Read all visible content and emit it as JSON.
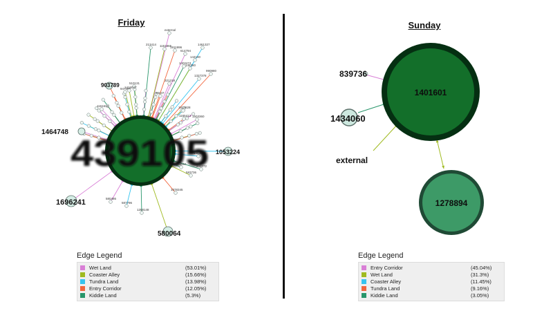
{
  "panels": [
    {
      "id": "friday",
      "title": "Friday",
      "legend_title": "Edge Legend",
      "legend": [
        {
          "label": "Wet Land",
          "pct": "(53.01%)",
          "color": "#d97fd6"
        },
        {
          "label": "Coaster Alley",
          "pct": "(15.66%)",
          "color": "#9fba1f"
        },
        {
          "label": "Tundra Land",
          "pct": "(13.98%)",
          "color": "#35c4f0"
        },
        {
          "label": "Entry Corridor",
          "pct": "(12.05%)",
          "color": "#f2663d"
        },
        {
          "label": "Kiddie Land",
          "pct": "(5.3%)",
          "color": "#27956a"
        }
      ],
      "hub": {
        "label": "439105",
        "color": "#136f2a"
      },
      "major_nodes": [
        {
          "label": "1464748"
        },
        {
          "label": "1053224"
        },
        {
          "label": "1696241"
        },
        {
          "label": "580064"
        },
        {
          "label": "903789"
        }
      ],
      "small_nodes": [
        {
          "label": "external"
        },
        {
          "label": "1461327"
        },
        {
          "label": "213414"
        },
        {
          "label": "1151865"
        },
        {
          "label": "1911996"
        },
        {
          "label": "614794"
        },
        {
          "label": "144190"
        },
        {
          "label": "1402474"
        },
        {
          "label": "146380"
        },
        {
          "label": "990980"
        },
        {
          "label": "321318"
        },
        {
          "label": "1327378"
        },
        {
          "label": "510131"
        },
        {
          "label": "947386"
        },
        {
          "label": "90447"
        },
        {
          "label": "1161616"
        },
        {
          "label": "1912828"
        },
        {
          "label": "241072"
        },
        {
          "label": "583736"
        },
        {
          "label": "1078345"
        },
        {
          "label": "580486"
        },
        {
          "label": "587796"
        },
        {
          "label": "1288148"
        },
        {
          "label": "1416047"
        },
        {
          "label": "1165413"
        },
        {
          "label": "1503360"
        },
        {
          "label": "1463089"
        },
        {
          "label": "301184"
        }
      ]
    },
    {
      "id": "sunday",
      "title": "Sunday",
      "legend_title": "Edge Legend",
      "legend": [
        {
          "label": "Entry Corridor",
          "pct": "(45.04%)",
          "color": "#d97fd6"
        },
        {
          "label": "Wet Land",
          "pct": "(31.3%)",
          "color": "#9fba1f"
        },
        {
          "label": "Coaster Alley",
          "pct": "(11.45%)",
          "color": "#35c4f0"
        },
        {
          "label": "Tundra Land",
          "pct": "(9.16%)",
          "color": "#f2663d"
        },
        {
          "label": "Kiddie Land",
          "pct": "(3.05%)",
          "color": "#27956a"
        }
      ],
      "nodes": [
        {
          "label": "1401601",
          "color": "#136f2a"
        },
        {
          "label": "1278894",
          "color": "#3d9a67"
        },
        {
          "label": "839736",
          "color": "#dff0ea"
        },
        {
          "label": "1434060",
          "color": "#cde8df"
        },
        {
          "label": "external",
          "color": "#ffffff"
        }
      ]
    }
  ]
}
